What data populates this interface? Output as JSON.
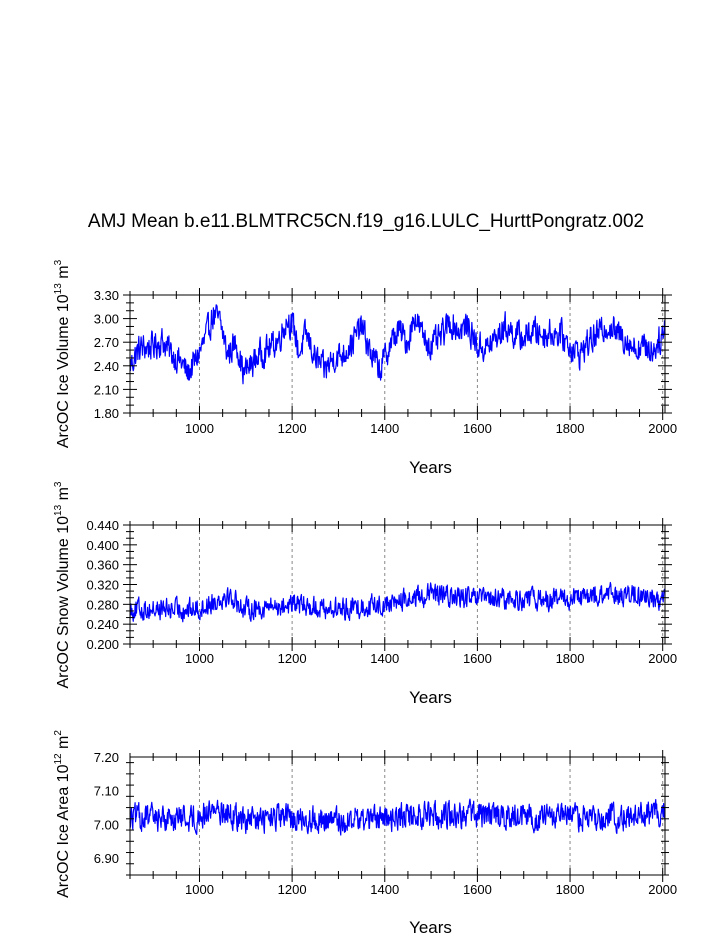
{
  "colors": {
    "line": "#0000ff",
    "axis": "#000000",
    "grid": "#888888"
  },
  "title": "AMJ Mean b.e11.BLMTRC5CN.f19_g16.LULC_HurttPongratz.002",
  "chart_data": [
    {
      "type": "line",
      "xlabel": "Years",
      "ylabel": {
        "prefix": "ArcOC Ice Volume 10",
        "exponent": "13",
        "unit": "m",
        "unit_exponent": "3"
      },
      "xlim": [
        850,
        2005
      ],
      "ylim": [
        1.8,
        3.3
      ],
      "xticks": [
        1000,
        1200,
        1400,
        1600,
        1800,
        2000
      ],
      "xticklabels": [
        "1000",
        "1200",
        "1400",
        "1600",
        "1800",
        "2000"
      ],
      "yticks": [
        1.8,
        2.1,
        2.4,
        2.7,
        3.0,
        3.3
      ],
      "yticklabels": [
        "1.80",
        "2.10",
        "2.40",
        "2.70",
        "3.00",
        "3.30"
      ],
      "series": [
        {
          "name": "ArcOC Ice Volume",
          "x_start": 850,
          "x_end": 2005,
          "anchors": [
            [
              850,
              2.4
            ],
            [
              870,
              2.62
            ],
            [
              900,
              2.65
            ],
            [
              920,
              2.72
            ],
            [
              940,
              2.55
            ],
            [
              960,
              2.45
            ],
            [
              975,
              2.3
            ],
            [
              990,
              2.45
            ],
            [
              1010,
              2.7
            ],
            [
              1030,
              3.05
            ],
            [
              1045,
              2.95
            ],
            [
              1060,
              2.55
            ],
            [
              1080,
              2.7
            ],
            [
              1095,
              2.3
            ],
            [
              1110,
              2.4
            ],
            [
              1130,
              2.55
            ],
            [
              1150,
              2.62
            ],
            [
              1170,
              2.72
            ],
            [
              1190,
              3.0
            ],
            [
              1205,
              2.85
            ],
            [
              1215,
              2.55
            ],
            [
              1230,
              2.8
            ],
            [
              1250,
              2.5
            ],
            [
              1270,
              2.35
            ],
            [
              1290,
              2.5
            ],
            [
              1310,
              2.55
            ],
            [
              1330,
              2.7
            ],
            [
              1350,
              2.9
            ],
            [
              1370,
              2.55
            ],
            [
              1390,
              2.35
            ],
            [
              1410,
              2.65
            ],
            [
              1430,
              2.85
            ],
            [
              1450,
              2.7
            ],
            [
              1465,
              3.05
            ],
            [
              1480,
              2.8
            ],
            [
              1500,
              2.65
            ],
            [
              1520,
              2.75
            ],
            [
              1540,
              2.95
            ],
            [
              1560,
              2.85
            ],
            [
              1580,
              2.9
            ],
            [
              1600,
              2.65
            ],
            [
              1620,
              2.62
            ],
            [
              1640,
              2.75
            ],
            [
              1660,
              2.9
            ],
            [
              1680,
              2.8
            ],
            [
              1700,
              2.75
            ],
            [
              1720,
              2.85
            ],
            [
              1740,
              2.8
            ],
            [
              1760,
              2.82
            ],
            [
              1780,
              2.8
            ],
            [
              1800,
              2.65
            ],
            [
              1820,
              2.55
            ],
            [
              1840,
              2.7
            ],
            [
              1860,
              2.8
            ],
            [
              1880,
              2.92
            ],
            [
              1900,
              2.82
            ],
            [
              1920,
              2.75
            ],
            [
              1940,
              2.62
            ],
            [
              1960,
              2.65
            ],
            [
              1980,
              2.6
            ],
            [
              2005,
              2.85
            ]
          ],
          "noise": 0.12,
          "clip": [
            1.9,
            3.22
          ]
        }
      ]
    },
    {
      "type": "line",
      "xlabel": "Years",
      "ylabel": {
        "prefix": "ArcOC Snow Volume 10",
        "exponent": "13",
        "unit": "m",
        "unit_exponent": "3"
      },
      "xlim": [
        850,
        2005
      ],
      "ylim": [
        0.2,
        0.44
      ],
      "xticks": [
        1000,
        1200,
        1400,
        1600,
        1800,
        2000
      ],
      "xticklabels": [
        "1000",
        "1200",
        "1400",
        "1600",
        "1800",
        "2000"
      ],
      "yticks": [
        0.2,
        0.24,
        0.28,
        0.32,
        0.36,
        0.4,
        0.44
      ],
      "yticklabels": [
        "0.200",
        "0.240",
        "0.280",
        "0.320",
        "0.360",
        "0.400",
        "0.440"
      ],
      "series": [
        {
          "name": "ArcOC Snow Volume",
          "x_start": 850,
          "x_end": 2005,
          "anchors": [
            [
              850,
              0.27
            ],
            [
              1000,
              0.27
            ],
            [
              1060,
              0.3
            ],
            [
              1100,
              0.27
            ],
            [
              1200,
              0.28
            ],
            [
              1300,
              0.27
            ],
            [
              1400,
              0.28
            ],
            [
              1500,
              0.3
            ],
            [
              1600,
              0.29
            ],
            [
              1700,
              0.29
            ],
            [
              1800,
              0.29
            ],
            [
              1900,
              0.3
            ],
            [
              2005,
              0.29
            ]
          ],
          "noise": 0.09,
          "clip": [
            0.205,
            0.42
          ]
        }
      ]
    },
    {
      "type": "line",
      "xlabel": "Years",
      "ylabel": {
        "prefix": "ArcOC Ice Area 10",
        "exponent": "12",
        "unit": "m",
        "unit_exponent": "2"
      },
      "xlim": [
        850,
        2005
      ],
      "ylim": [
        6.85,
        7.2
      ],
      "xticks": [
        1000,
        1200,
        1400,
        1600,
        1800,
        2000
      ],
      "xticklabels": [
        "1000",
        "1200",
        "1400",
        "1600",
        "1800",
        "2000"
      ],
      "yticks": [
        6.9,
        7.0,
        7.1,
        7.2
      ],
      "yticklabels": [
        "6.90",
        "7.00",
        "7.10",
        "7.20"
      ],
      "series": [
        {
          "name": "ArcOC Ice Area",
          "x_start": 850,
          "x_end": 2005,
          "anchors": [
            [
              850,
              7.02
            ],
            [
              1000,
              7.02
            ],
            [
              1030,
              7.05
            ],
            [
              1100,
              7.01
            ],
            [
              1200,
              7.02
            ],
            [
              1300,
              7.01
            ],
            [
              1400,
              7.02
            ],
            [
              1500,
              7.03
            ],
            [
              1600,
              7.03
            ],
            [
              1700,
              7.02
            ],
            [
              1800,
              7.02
            ],
            [
              1900,
              7.02
            ],
            [
              2005,
              7.03
            ]
          ],
          "noise": 0.11,
          "clip": [
            6.86,
            7.17
          ]
        }
      ]
    }
  ]
}
